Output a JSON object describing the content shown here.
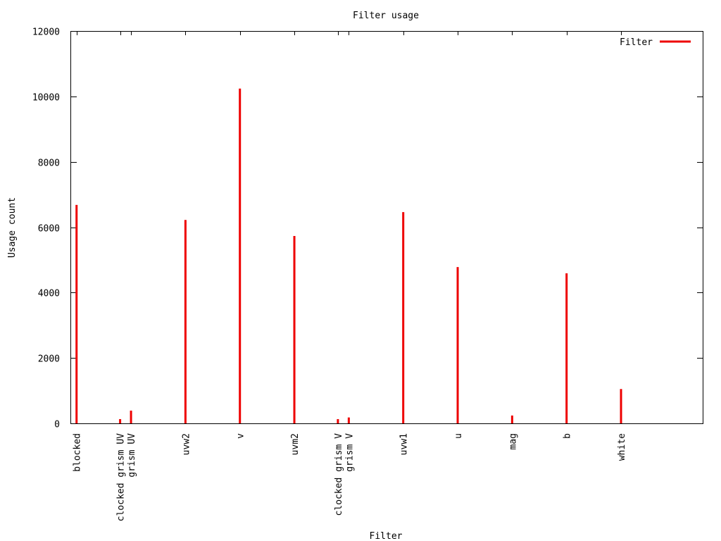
{
  "chart_data": {
    "type": "bar",
    "title": "Filter usage",
    "xlabel": "Filter",
    "ylabel": "Usage count",
    "ylim": [
      0,
      12000
    ],
    "yticks": [
      0,
      2000,
      4000,
      6000,
      8000,
      10000,
      12000
    ],
    "xlim": [
      -0.1,
      11.5
    ],
    "legend": {
      "label": "Filter",
      "placement": "top-right"
    },
    "grid": false,
    "colors": {
      "series": "#ee0000"
    },
    "points": [
      {
        "label": "blocked",
        "x": 0,
        "value": 6680
      },
      {
        "label": "clocked grism UV",
        "x": 0.8,
        "value": 130
      },
      {
        "label": "grism UV",
        "x": 1,
        "value": 390
      },
      {
        "label": "uvw2",
        "x": 2,
        "value": 6220
      },
      {
        "label": "v",
        "x": 3,
        "value": 10240
      },
      {
        "label": "uvm2",
        "x": 4,
        "value": 5730
      },
      {
        "label": "clocked grism V",
        "x": 4.8,
        "value": 130
      },
      {
        "label": "grism V",
        "x": 5,
        "value": 180
      },
      {
        "label": "uvw1",
        "x": 6,
        "value": 6460
      },
      {
        "label": "u",
        "x": 7,
        "value": 4780
      },
      {
        "label": "mag",
        "x": 8,
        "value": 240
      },
      {
        "label": "b",
        "x": 9,
        "value": 4590
      },
      {
        "label": "white",
        "x": 10,
        "value": 1050
      }
    ]
  }
}
